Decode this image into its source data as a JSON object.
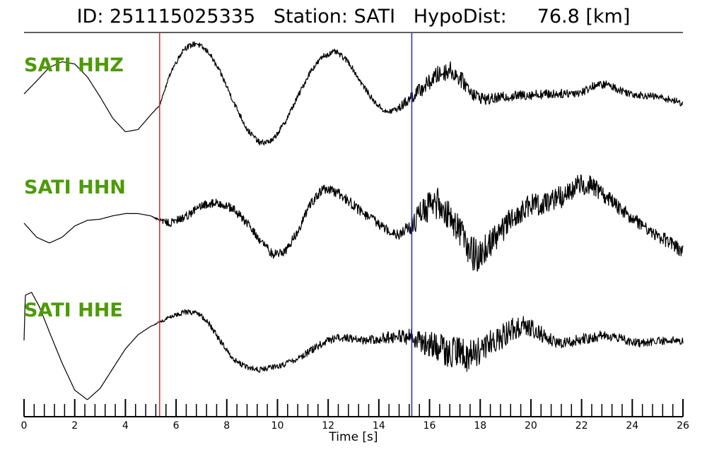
{
  "header": {
    "id_text": "ID: 251115025335",
    "station_text": "Station: SATI",
    "hypodist_text": "HypoDist:     76.8 [km]"
  },
  "colors": {
    "trace": "#000000",
    "label": "#4d9a06",
    "p_pick": "#e8202a",
    "s_pick": "#2323e0"
  },
  "chart_data": {
    "type": "line",
    "title": "ID: 251115025335   Station: SATI   HypoDist:     76.8 [km]",
    "xlabel": "Time [s]",
    "ylabel": "",
    "xlim": [
      0,
      26
    ],
    "x_ticks": [
      0,
      2,
      4,
      6,
      8,
      10,
      12,
      14,
      16,
      18,
      20,
      22,
      24,
      26
    ],
    "minor_tick_step": 0.4,
    "grid": false,
    "picks": [
      {
        "phase": "P",
        "time": 5.35,
        "color": "#e8202a"
      },
      {
        "phase": "S",
        "time": 15.3,
        "color": "#2323e0"
      }
    ],
    "series": [
      {
        "name": "SATI HHZ",
        "x": [
          0,
          0.5,
          1.0,
          1.5,
          2.0,
          2.5,
          3.0,
          3.5,
          4.0,
          4.5,
          5.0,
          5.35,
          5.8,
          6.3,
          6.8,
          7.3,
          7.8,
          8.3,
          8.8,
          9.3,
          9.8,
          10.3,
          10.8,
          11.3,
          11.8,
          12.3,
          12.8,
          13.3,
          13.8,
          14.3,
          14.8,
          15.3,
          15.8,
          16.3,
          16.8,
          17.3,
          17.8,
          18.3,
          19.0,
          20.0,
          21.0,
          22.0,
          22.5,
          23.0,
          23.5,
          24.0,
          24.5,
          25.0,
          25.5,
          26.0
        ],
        "y": [
          0.05,
          0.28,
          0.52,
          0.62,
          0.58,
          0.35,
          0.0,
          -0.38,
          -0.62,
          -0.58,
          -0.32,
          -0.15,
          0.45,
          0.85,
          0.95,
          0.78,
          0.38,
          -0.12,
          -0.58,
          -0.82,
          -0.78,
          -0.45,
          0.0,
          0.45,
          0.72,
          0.8,
          0.62,
          0.25,
          -0.08,
          -0.28,
          -0.2,
          0.0,
          0.18,
          0.38,
          0.48,
          0.28,
          0.02,
          -0.05,
          0.0,
          0.04,
          0.05,
          0.08,
          0.2,
          0.22,
          0.12,
          0.05,
          0.02,
          0.0,
          -0.05,
          -0.12
        ],
        "noise": [
          0.0,
          0.0,
          0.0,
          0.0,
          0.0,
          0.0,
          0.0,
          0.0,
          0.0,
          0.0,
          0.0,
          0.01,
          0.04,
          0.05,
          0.05,
          0.05,
          0.05,
          0.05,
          0.05,
          0.05,
          0.05,
          0.05,
          0.05,
          0.05,
          0.05,
          0.05,
          0.05,
          0.05,
          0.05,
          0.05,
          0.07,
          0.12,
          0.14,
          0.16,
          0.16,
          0.14,
          0.12,
          0.1,
          0.09,
          0.09,
          0.08,
          0.08,
          0.07,
          0.07,
          0.07,
          0.07,
          0.06,
          0.06,
          0.06,
          0.06
        ]
      },
      {
        "name": "SATI HHN",
        "x": [
          0,
          0.5,
          1.0,
          1.5,
          2.0,
          2.5,
          3.0,
          3.5,
          4.0,
          4.5,
          5.0,
          5.35,
          5.8,
          6.3,
          6.8,
          7.3,
          7.8,
          8.3,
          8.8,
          9.3,
          9.8,
          10.3,
          10.8,
          11.3,
          11.8,
          12.3,
          12.8,
          13.3,
          13.8,
          14.3,
          14.8,
          15.3,
          15.8,
          16.3,
          16.8,
          17.3,
          17.6,
          17.9,
          18.3,
          18.8,
          19.3,
          19.8,
          20.3,
          20.8,
          21.3,
          21.8,
          22.3,
          22.8,
          23.3,
          23.8,
          24.3,
          24.8,
          25.3,
          26.0
        ],
        "y": [
          -0.05,
          -0.3,
          -0.4,
          -0.3,
          -0.1,
          0.0,
          0.02,
          0.08,
          0.12,
          0.12,
          0.08,
          0.0,
          -0.05,
          0.05,
          0.2,
          0.3,
          0.3,
          0.18,
          -0.05,
          -0.35,
          -0.6,
          -0.55,
          -0.2,
          0.3,
          0.55,
          0.5,
          0.35,
          0.15,
          0.0,
          -0.15,
          -0.25,
          -0.1,
          0.2,
          0.3,
          0.1,
          -0.25,
          -0.55,
          -0.65,
          -0.45,
          -0.2,
          0.05,
          0.2,
          0.3,
          0.35,
          0.45,
          0.6,
          0.65,
          0.5,
          0.3,
          0.1,
          -0.05,
          -0.2,
          -0.35,
          -0.55
        ],
        "noise": [
          0.0,
          0.0,
          0.0,
          0.0,
          0.0,
          0.0,
          0.0,
          0.0,
          0.0,
          0.0,
          0.0,
          0.03,
          0.08,
          0.08,
          0.08,
          0.08,
          0.08,
          0.08,
          0.08,
          0.08,
          0.08,
          0.08,
          0.08,
          0.08,
          0.09,
          0.09,
          0.09,
          0.09,
          0.09,
          0.09,
          0.1,
          0.18,
          0.25,
          0.28,
          0.28,
          0.3,
          0.32,
          0.3,
          0.25,
          0.22,
          0.22,
          0.22,
          0.22,
          0.22,
          0.22,
          0.2,
          0.18,
          0.16,
          0.14,
          0.12,
          0.12,
          0.12,
          0.12,
          0.12
        ]
      },
      {
        "name": "SATI HHE",
        "x": [
          0,
          0.05,
          0.3,
          0.6,
          1.0,
          1.5,
          2.0,
          2.5,
          3.0,
          3.5,
          4.0,
          4.5,
          5.0,
          5.35,
          5.8,
          6.3,
          6.8,
          7.3,
          7.8,
          8.3,
          8.8,
          9.3,
          9.8,
          10.3,
          10.8,
          11.3,
          11.8,
          12.3,
          12.8,
          13.3,
          13.8,
          14.3,
          14.8,
          15.3,
          15.8,
          16.3,
          16.8,
          17.3,
          17.8,
          18.3,
          18.8,
          19.3,
          19.8,
          20.3,
          20.8,
          21.3,
          21.8,
          22.3,
          22.8,
          23.3,
          23.8,
          24.3,
          24.8,
          25.3,
          26.0
        ],
        "y": [
          0.0,
          0.8,
          0.85,
          0.6,
          0.15,
          -0.4,
          -0.88,
          -1.05,
          -0.85,
          -0.5,
          -0.15,
          0.1,
          0.25,
          0.32,
          0.42,
          0.5,
          0.5,
          0.3,
          -0.05,
          -0.35,
          -0.48,
          -0.52,
          -0.48,
          -0.42,
          -0.32,
          -0.18,
          -0.05,
          0.05,
          0.05,
          0.0,
          0.02,
          0.05,
          0.08,
          0.05,
          -0.05,
          -0.1,
          -0.2,
          -0.28,
          -0.2,
          -0.08,
          0.05,
          0.2,
          0.3,
          0.15,
          0.0,
          -0.05,
          0.0,
          0.05,
          0.08,
          0.06,
          0.0,
          -0.05,
          -0.02,
          0.0,
          0.0
        ],
        "noise": [
          0.0,
          0.0,
          0.0,
          0.0,
          0.0,
          0.0,
          0.0,
          0.0,
          0.0,
          0.0,
          0.0,
          0.0,
          0.0,
          0.02,
          0.04,
          0.05,
          0.05,
          0.05,
          0.05,
          0.05,
          0.05,
          0.05,
          0.05,
          0.05,
          0.06,
          0.07,
          0.07,
          0.07,
          0.07,
          0.07,
          0.08,
          0.1,
          0.12,
          0.15,
          0.2,
          0.25,
          0.3,
          0.32,
          0.3,
          0.25,
          0.22,
          0.22,
          0.2,
          0.15,
          0.12,
          0.1,
          0.1,
          0.1,
          0.09,
          0.08,
          0.08,
          0.07,
          0.07,
          0.07,
          0.07
        ]
      }
    ]
  }
}
